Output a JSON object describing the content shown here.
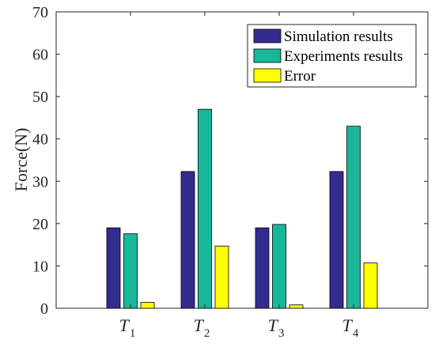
{
  "chart_data": {
    "type": "bar",
    "categories": [
      {
        "main": "T",
        "sub": "1"
      },
      {
        "main": "T",
        "sub": "2"
      },
      {
        "main": "T",
        "sub": "3"
      },
      {
        "main": "T",
        "sub": "4"
      }
    ],
    "series": [
      {
        "name": "Simulation results",
        "color": "#332c8f",
        "values": [
          19.0,
          32.3,
          19.0,
          32.3
        ]
      },
      {
        "name": "Experiments results",
        "color": "#18b79a",
        "values": [
          17.6,
          47.0,
          19.8,
          43.0
        ]
      },
      {
        "name": "Error",
        "color": "#ffff00",
        "values": [
          1.4,
          14.7,
          0.8,
          10.7
        ]
      }
    ],
    "ylabel": "Force(N)",
    "ylim": [
      0,
      70
    ],
    "yticks": [
      0,
      10,
      20,
      30,
      40,
      50,
      60,
      70
    ],
    "legend_position": "top-right",
    "grid": false
  }
}
